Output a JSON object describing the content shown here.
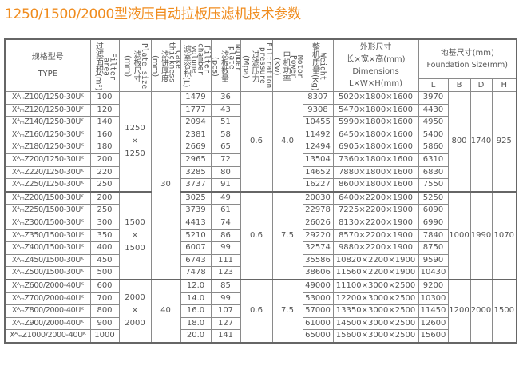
{
  "title": "1250/1500/2000型液压自动拉板压滤机技术参数",
  "headers": {
    "type_cn": "规格型号",
    "type_en": "TYPE",
    "area_cn": "过滤面积(m²)",
    "area_en": "Filter area",
    "plate_cn": "滤板尺寸(mm)",
    "plate_en": "Plate size",
    "cake_cn": "滤饼厚度(mm)",
    "cake_en": "Cake thickness",
    "volume_cn": "滤室容积(L)",
    "volume_en": "Filter chamber volume",
    "number_cn": "滤板数量(pcs)",
    "number_en": "Number plate",
    "pressure_cn": "过滤压力(Mpa)",
    "pressure_en": "Filtration pressure",
    "motor_cn": "电机功率(Kw)",
    "motor_en": "Motor Power",
    "weight_cn": "整机质量(Kg)",
    "weight_en": "Weight",
    "dims_cn": "外形尺寸",
    "dims_cn2": "长×宽×高(mm)",
    "dims_en": "Dimensions",
    "dims_en2": "L×W×H(mm)",
    "found_cn": "地基尺寸(mm)",
    "found_en": "Foundation Size(mm)",
    "L": "L",
    "B": "B",
    "D": "D",
    "H": "H"
  },
  "groups": [
    {
      "plate": [
        "1250",
        "×",
        "1250"
      ],
      "pressure": "0.6",
      "motor": "4.0",
      "B": "800",
      "D": "1740",
      "H": "925"
    },
    {
      "plate": [
        "1500",
        "×",
        "1500"
      ],
      "pressure": "0.6",
      "motor": "7.5",
      "B": "1000",
      "D": "1990",
      "H": "1070"
    },
    {
      "plate": [
        "2000",
        "×",
        "2000"
      ],
      "pressure": "0.6",
      "motor": "7.5",
      "B": "1200",
      "D": "2000",
      "H": "1500"
    }
  ],
  "cake": [
    "30",
    "40"
  ],
  "rows": [
    {
      "type": "XᴬₘZ100/1250-30Uᴷ",
      "area": "100",
      "volume": "1479",
      "number": "36",
      "weight": "8307",
      "dims": "5020×1800×1600",
      "L": "3970"
    },
    {
      "type": "XᴬₘZ120/1250-30Uᴷ",
      "area": "120",
      "volume": "1777",
      "number": "43",
      "weight": "9308",
      "dims": "5470×1800×1600",
      "L": "4430"
    },
    {
      "type": "XᴬₘZ140/1250-30Uᴷ",
      "area": "140",
      "volume": "2094",
      "number": "51",
      "weight": "10455",
      "dims": "5990×1800×1600",
      "L": "4950"
    },
    {
      "type": "XᴬₘZ160/1250-30Uᴷ",
      "area": "160",
      "volume": "2381",
      "number": "58",
      "weight": "11492",
      "dims": "6450×1800×1600",
      "L": "5400"
    },
    {
      "type": "XᴬₘZ180/1250-30Uᴷ",
      "area": "180",
      "volume": "2669",
      "number": "65",
      "weight": "12494",
      "dims": "6905×1800×1600",
      "L": "5860"
    },
    {
      "type": "XᴬₘZ200/1250-30Uᴷ",
      "area": "200",
      "volume": "2965",
      "number": "72",
      "weight": "13504",
      "dims": "7360×1800×1600",
      "L": "6310"
    },
    {
      "type": "XᴬₘZ220/1250-30Uᴷ",
      "area": "220",
      "volume": "3285",
      "number": "80",
      "weight": "14652",
      "dims": "7880×1800×1600",
      "L": "6830"
    },
    {
      "type": "XᴬₘZ250/1250-30Uᴷ",
      "area": "250",
      "volume": "3737",
      "number": "91",
      "weight": "16227",
      "dims": "8600×1800×1600",
      "L": "7550"
    },
    {
      "type": "XᴬₘZ200/1500-30Uᴷ",
      "area": "200",
      "volume": "3025",
      "number": "49",
      "weight": "20030",
      "dims": "6400×2200×1900",
      "L": "5250"
    },
    {
      "type": "XᴬₘZ250/1500-30Uᴷ",
      "area": "250",
      "volume": "3739",
      "number": "61",
      "weight": "22978",
      "dims": "7225×2200×1900",
      "L": "6090"
    },
    {
      "type": "XᴬₘZ300/1500-30Uᴷ",
      "area": "300",
      "volume": "4413",
      "number": "74",
      "weight": "26026",
      "dims": "8130×2200×1900",
      "L": "6990"
    },
    {
      "type": "XᴬₘZ350/1500-30Uᴷ",
      "area": "350",
      "volume": "5210",
      "number": "86",
      "weight": "29220",
      "dims": "8570×2200×1900",
      "L": "7840"
    },
    {
      "type": "XᴬₘZ400/1500-30Uᴷ",
      "area": "400",
      "volume": "6007",
      "number": "99",
      "weight": "32574",
      "dims": "9880×2200×1900",
      "L": "8750"
    },
    {
      "type": "XᴬₘZ450/1500-30Uᴷ",
      "area": "450",
      "volume": "6743",
      "number": "111",
      "weight": "35586",
      "dims": "10820×2200×1900",
      "L": "9590"
    },
    {
      "type": "XᴬₘZ500/1500-30Uᴷ",
      "area": "500",
      "volume": "7478",
      "number": "123",
      "weight": "38606",
      "dims": "11560×2200×1900",
      "L": "10430"
    },
    {
      "type": "XᴬₘZ600/2000-40Uᴷ",
      "area": "600",
      "volume": "12.0",
      "number": "85",
      "weight": "49000",
      "dims": "11100×3000×2500",
      "L": "9200"
    },
    {
      "type": "XᴬₘZ700/2000-40Uᴷ",
      "area": "700",
      "volume": "14.0",
      "number": "99",
      "weight": "53000",
      "dims": "12200×3000×2500",
      "L": "10300"
    },
    {
      "type": "XᴬₘZ800/2000-40Uᴷ",
      "area": "800",
      "volume": "16.0",
      "number": "107",
      "weight": "57000",
      "dims": "13350×3000×2500",
      "L": "11450"
    },
    {
      "type": "XᴬₘZ900/2000-40Uᴷ",
      "area": "900",
      "volume": "18.0",
      "number": "127",
      "weight": "61000",
      "dims": "14500×3000×2500",
      "L": "12600"
    },
    {
      "type": "XᴬₘZ1000/2000-40Uᴷ",
      "area": "1000",
      "volume": "20.0",
      "number": "141",
      "weight": "65000",
      "dims": "15600×3000×2500",
      "L": "15600"
    }
  ]
}
